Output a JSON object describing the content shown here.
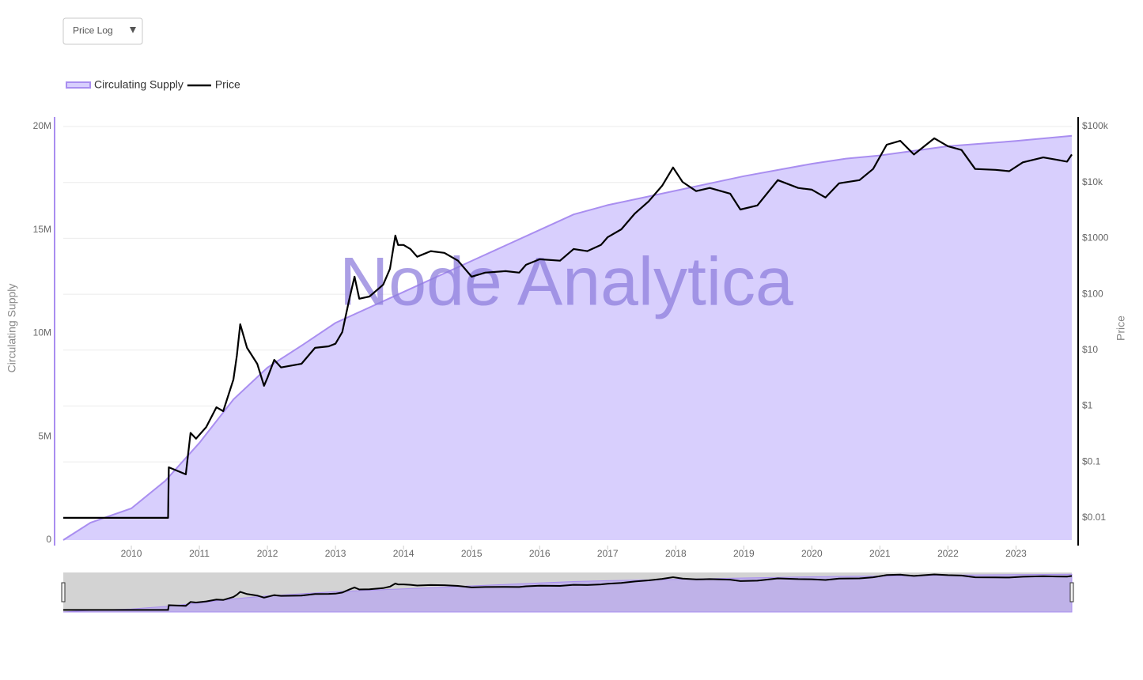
{
  "dropdown": {
    "label": "Price Log"
  },
  "chart_data": {
    "type": "area-line",
    "watermark": "Node Analytica",
    "y_label": "Circulating Supply",
    "y2_label": "Price",
    "xlim": [
      2009,
      2023.82
    ],
    "xticks": [
      2010,
      2011,
      2012,
      2013,
      2014,
      2015,
      2016,
      2017,
      2018,
      2019,
      2020,
      2021,
      2022,
      2023
    ],
    "ylim": [
      0,
      20460000
    ],
    "yticks": [
      0,
      {
        "value": 5000000,
        "label": "5M"
      },
      {
        "value": 10000000,
        "label": "10M"
      },
      {
        "value": 15000000,
        "label": "15M"
      },
      {
        "value": 20000000,
        "label": "20M"
      }
    ],
    "y2lim": [
      0.004,
      148000
    ],
    "y2log": true,
    "y2ticks": [
      {
        "value": 0.01,
        "label": "$0.01"
      },
      {
        "value": 0.1,
        "label": "$0.1"
      },
      {
        "value": 1,
        "label": "$1"
      },
      {
        "value": 10,
        "label": "$10"
      },
      {
        "value": 100,
        "label": "$100"
      },
      {
        "value": 1000,
        "label": "$1000"
      },
      {
        "value": 10000,
        "label": "$10k"
      },
      {
        "value": 100000,
        "label": "$100k"
      }
    ],
    "grid": true,
    "legend": "top-left",
    "series": [
      {
        "name": "Circulating Supply",
        "kind": "area",
        "axis": "y",
        "color": "#a98ef0",
        "fill": "#d8cffd",
        "x": [
          2009.0,
          2009.4,
          2010.0,
          2010.5,
          2011.0,
          2011.5,
          2012.0,
          2012.5,
          2013.0,
          2014.0,
          2015.0,
          2016.0,
          2016.5,
          2017.0,
          2018.0,
          2019.0,
          2020.0,
          2020.5,
          2021.0,
          2022.0,
          2023.0,
          2023.82
        ],
        "values": [
          0,
          840000,
          1530000,
          2870000,
          4700000,
          6800000,
          8340000,
          9400000,
          10500000,
          12000000,
          13500000,
          15000000,
          15750000,
          16200000,
          16900000,
          17600000,
          18200000,
          18450000,
          18600000,
          19050000,
          19300000,
          19550000
        ]
      },
      {
        "name": "Price",
        "kind": "line",
        "axis": "y2",
        "color": "#000000",
        "x": [
          2009.0,
          2010.54,
          2010.55,
          2010.8,
          2010.87,
          2010.95,
          2011.1,
          2011.25,
          2011.35,
          2011.5,
          2011.55,
          2011.6,
          2011.7,
          2011.85,
          2011.95,
          2012.0,
          2012.1,
          2012.2,
          2012.5,
          2012.7,
          2012.9,
          2013.0,
          2013.1,
          2013.2,
          2013.28,
          2013.35,
          2013.5,
          2013.7,
          2013.8,
          2013.88,
          2013.92,
          2014.0,
          2014.1,
          2014.2,
          2014.4,
          2014.6,
          2014.8,
          2015.0,
          2015.2,
          2015.5,
          2015.7,
          2015.8,
          2016.0,
          2016.3,
          2016.5,
          2016.7,
          2016.9,
          2017.0,
          2017.2,
          2017.4,
          2017.6,
          2017.8,
          2017.96,
          2018.1,
          2018.3,
          2018.5,
          2018.8,
          2018.95,
          2019.2,
          2019.5,
          2019.8,
          2020.0,
          2020.2,
          2020.4,
          2020.7,
          2020.9,
          2021.1,
          2021.3,
          2021.5,
          2021.8,
          2022.0,
          2022.2,
          2022.4,
          2022.7,
          2022.9,
          2023.1,
          2023.4,
          2023.6,
          2023.75,
          2023.82
        ],
        "values": [
          0.01,
          0.01,
          0.08,
          0.06,
          0.33,
          0.26,
          0.42,
          0.95,
          0.81,
          2.99,
          7.9,
          29,
          11,
          5.7,
          2.3,
          3.2,
          6.7,
          4.9,
          5.7,
          11,
          11.7,
          13,
          21,
          78,
          206,
          83,
          91,
          148,
          285,
          1120,
          760,
          760,
          645,
          468,
          590,
          550,
          398,
          206,
          243,
          259,
          243,
          336,
          422,
          398,
          645,
          590,
          760,
          1050,
          1450,
          2790,
          4560,
          8730,
          18500,
          10200,
          7000,
          7960,
          6300,
          3270,
          3880,
          11000,
          7960,
          7420,
          5380,
          9650,
          11000,
          17400,
          47400,
          55600,
          31600,
          61700,
          44500,
          38000,
          17400,
          16800,
          15900,
          22900,
          28000,
          25400,
          23600,
          31600
        ]
      }
    ]
  }
}
